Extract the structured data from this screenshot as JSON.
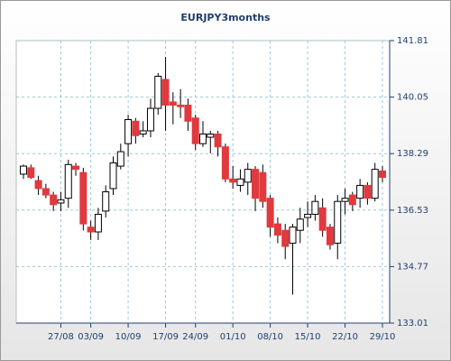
{
  "chart_data": {
    "type": "candlestick",
    "title": "EURJPY3months",
    "categories": [
      null,
      null,
      null,
      null,
      null,
      "27/08",
      null,
      null,
      null,
      "03/09",
      null,
      null,
      null,
      null,
      "10/09",
      null,
      null,
      null,
      null,
      "17/09",
      null,
      null,
      null,
      "24/09",
      null,
      null,
      null,
      null,
      "01/10",
      null,
      null,
      null,
      null,
      "08/10",
      null,
      null,
      null,
      null,
      "15/10",
      null,
      null,
      null,
      null,
      "22/10",
      null,
      null,
      null,
      null,
      "29/10"
    ],
    "open": [
      137.65,
      137.85,
      137.45,
      137.2,
      137.0,
      136.75,
      136.9,
      137.9,
      137.7,
      136.0,
      135.85,
      136.5,
      137.2,
      137.9,
      138.6,
      139.3,
      138.9,
      139.0,
      139.7,
      140.6,
      139.9,
      139.8,
      139.8,
      139.4,
      138.6,
      138.8,
      138.9,
      138.5,
      137.5,
      137.3,
      137.4,
      137.8,
      137.7,
      136.9,
      136.1,
      135.9,
      135.5,
      135.9,
      136.3,
      136.4,
      136.6,
      136.0,
      135.5,
      136.8,
      137.0,
      136.9,
      137.3,
      136.9,
      137.75
    ],
    "high": [
      137.95,
      137.95,
      137.6,
      137.35,
      137.1,
      137.1,
      138.1,
      138.0,
      137.85,
      136.2,
      136.6,
      137.3,
      138.2,
      138.6,
      139.5,
      139.4,
      139.3,
      140.0,
      140.8,
      141.3,
      140.2,
      140.3,
      140.0,
      139.5,
      139.3,
      139.0,
      139.0,
      138.6,
      137.9,
      137.8,
      138.0,
      137.9,
      137.95,
      137.0,
      136.3,
      136.1,
      136.1,
      136.6,
      136.8,
      137.0,
      136.9,
      136.1,
      137.0,
      137.2,
      137.1,
      137.5,
      137.4,
      138.0,
      137.9
    ],
    "low": [
      137.5,
      137.5,
      137.0,
      136.9,
      136.5,
      136.5,
      136.6,
      137.6,
      135.9,
      135.6,
      135.6,
      136.3,
      137.0,
      137.8,
      138.2,
      138.6,
      138.8,
      138.8,
      139.5,
      139.0,
      139.2,
      139.4,
      139.0,
      138.4,
      138.5,
      138.3,
      138.2,
      137.4,
      137.2,
      137.1,
      137.0,
      136.5,
      136.6,
      135.7,
      135.5,
      135.0,
      133.9,
      135.5,
      136.0,
      136.2,
      135.7,
      135.3,
      135.0,
      136.4,
      136.5,
      136.6,
      136.7,
      136.8,
      137.4
    ],
    "close": [
      137.9,
      137.55,
      137.2,
      137.0,
      136.7,
      136.85,
      137.95,
      137.8,
      136.1,
      135.85,
      136.4,
      137.1,
      138.0,
      138.35,
      139.35,
      138.85,
      139.0,
      139.7,
      140.7,
      139.8,
      139.8,
      139.75,
      139.3,
      138.6,
      138.9,
      138.9,
      138.5,
      137.5,
      137.4,
      137.5,
      137.8,
      136.9,
      136.8,
      136.0,
      135.75,
      135.4,
      136.0,
      136.25,
      136.4,
      136.8,
      135.9,
      135.45,
      136.8,
      136.9,
      136.7,
      137.3,
      136.9,
      137.8,
      137.55
    ],
    "ylim": [
      133.01,
      141.81
    ],
    "yticks": [
      133.01,
      134.77,
      136.53,
      138.29,
      140.05,
      141.81
    ],
    "up_color": "#ffffff",
    "down_color": "#e0393e",
    "grid": true
  }
}
